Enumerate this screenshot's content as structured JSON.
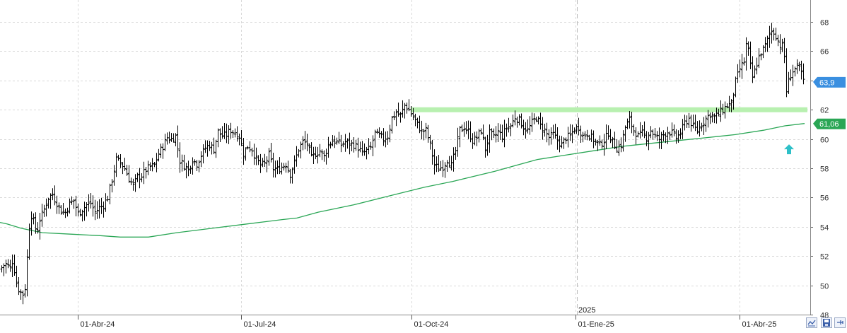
{
  "chart_data": {
    "type": "ohlc",
    "x_axis": {
      "tick_labels": [
        "01-Abr-24",
        "01-Jul-24",
        "01-Oct-24",
        "01-Ene-25",
        "01-Abr-25"
      ],
      "year_marker": "2025"
    },
    "y_axis": {
      "range": [
        48,
        69.5
      ],
      "tick_labels": [
        "48",
        "50",
        "52",
        "54",
        "56",
        "58",
        "60",
        "62",
        "64",
        "66",
        "68"
      ],
      "side": "right",
      "grid": true
    },
    "last_price": "63,9",
    "moving_average_last": "61,06",
    "support_level": 62,
    "price_path": [
      [
        0,
        51.1
      ],
      [
        7,
        51.5
      ],
      [
        14,
        51.2
      ],
      [
        18,
        51.8
      ],
      [
        22,
        50.3
      ],
      [
        27,
        49.6
      ],
      [
        32,
        49.4
      ],
      [
        36,
        50.0
      ],
      [
        40,
        53.8
      ],
      [
        44,
        54.8
      ],
      [
        48,
        54.2
      ],
      [
        52,
        53.6
      ],
      [
        56,
        54.5
      ],
      [
        62,
        55.2
      ],
      [
        68,
        56.0
      ],
      [
        74,
        56.2
      ],
      [
        80,
        55.6
      ],
      [
        86,
        55.1
      ],
      [
        92,
        55.0
      ],
      [
        98,
        55.6
      ],
      [
        104,
        55.8
      ],
      [
        110,
        54.9
      ],
      [
        116,
        55.2
      ],
      [
        122,
        55.5
      ],
      [
        128,
        55.6
      ],
      [
        134,
        55.0
      ],
      [
        140,
        55.3
      ],
      [
        146,
        55.5
      ],
      [
        152,
        56.0
      ],
      [
        158,
        57.2
      ],
      [
        164,
        58.6
      ],
      [
        170,
        58.4
      ],
      [
        176,
        58.0
      ],
      [
        182,
        57.3
      ],
      [
        188,
        56.8
      ],
      [
        194,
        57.4
      ],
      [
        200,
        57.5
      ],
      [
        206,
        57.9
      ],
      [
        212,
        58.1
      ],
      [
        218,
        58.2
      ],
      [
        224,
        59.0
      ],
      [
        230,
        59.5
      ],
      [
        236,
        60.1
      ],
      [
        242,
        60.0
      ],
      [
        248,
        60.2
      ],
      [
        254,
        58.5
      ],
      [
        260,
        58.2
      ],
      [
        266,
        57.9
      ],
      [
        272,
        58.6
      ],
      [
        278,
        58.3
      ],
      [
        284,
        58.9
      ],
      [
        290,
        59.4
      ],
      [
        296,
        59.6
      ],
      [
        302,
        59.3
      ],
      [
        308,
        60.5
      ],
      [
        314,
        60.2
      ],
      [
        320,
        60.3
      ],
      [
        326,
        60.6
      ],
      [
        332,
        60.4
      ],
      [
        338,
        60.2
      ],
      [
        344,
        59.0
      ],
      [
        350,
        59.5
      ],
      [
        356,
        59.3
      ],
      [
        362,
        58.6
      ],
      [
        368,
        58.2
      ],
      [
        374,
        58.3
      ],
      [
        380,
        58.9
      ],
      [
        386,
        58.0
      ],
      [
        392,
        57.9
      ],
      [
        398,
        58.1
      ],
      [
        404,
        58.3
      ],
      [
        410,
        57.6
      ],
      [
        416,
        58.4
      ],
      [
        422,
        59.3
      ],
      [
        428,
        59.8
      ],
      [
        434,
        59.7
      ],
      [
        440,
        58.7
      ],
      [
        446,
        59.0
      ],
      [
        452,
        59.2
      ],
      [
        458,
        58.8
      ],
      [
        464,
        59.6
      ],
      [
        470,
        59.9
      ],
      [
        476,
        59.8
      ],
      [
        482,
        59.6
      ],
      [
        488,
        59.8
      ],
      [
        494,
        59.7
      ],
      [
        500,
        59.6
      ],
      [
        506,
        59.4
      ],
      [
        512,
        59.0
      ],
      [
        518,
        59.2
      ],
      [
        524,
        59.4
      ],
      [
        530,
        60.4
      ],
      [
        536,
        60.2
      ],
      [
        542,
        60.0
      ],
      [
        548,
        60.2
      ],
      [
        554,
        61.4
      ],
      [
        560,
        61.8
      ],
      [
        566,
        61.6
      ],
      [
        572,
        62.3
      ],
      [
        578,
        62.0
      ],
      [
        584,
        61.5
      ],
      [
        590,
        61.0
      ],
      [
        596,
        60.5
      ],
      [
        602,
        60.6
      ],
      [
        608,
        59.6
      ],
      [
        614,
        58.2
      ],
      [
        620,
        58.0
      ],
      [
        626,
        58.1
      ],
      [
        632,
        58.6
      ],
      [
        638,
        58.2
      ],
      [
        644,
        59.2
      ],
      [
        650,
        60.6
      ],
      [
        656,
        60.8
      ],
      [
        662,
        60.5
      ],
      [
        668,
        59.9
      ],
      [
        674,
        60.1
      ],
      [
        680,
        60.6
      ],
      [
        686,
        59.3
      ],
      [
        692,
        60.4
      ],
      [
        698,
        60.1
      ],
      [
        704,
        60.5
      ],
      [
        710,
        60.2
      ],
      [
        716,
        60.8
      ],
      [
        722,
        60.9
      ],
      [
        728,
        61.5
      ],
      [
        734,
        61.3
      ],
      [
        740,
        60.8
      ],
      [
        746,
        60.6
      ],
      [
        752,
        61.1
      ],
      [
        758,
        61.5
      ],
      [
        764,
        60.9
      ],
      [
        770,
        60.6
      ],
      [
        776,
        60.1
      ],
      [
        782,
        60.3
      ],
      [
        788,
        59.9
      ],
      [
        794,
        59.6
      ],
      [
        800,
        60.1
      ],
      [
        806,
        60.2
      ],
      [
        812,
        60.7
      ],
      [
        818,
        60.8
      ],
      [
        824,
        60.2
      ],
      [
        830,
        60.4
      ],
      [
        836,
        60.1
      ],
      [
        842,
        59.8
      ],
      [
        848,
        59.6
      ],
      [
        854,
        59.9
      ],
      [
        860,
        60.4
      ],
      [
        866,
        59.8
      ],
      [
        872,
        59.4
      ],
      [
        878,
        59.6
      ],
      [
        884,
        60.8
      ],
      [
        890,
        61.3
      ],
      [
        896,
        60.6
      ],
      [
        902,
        60.2
      ],
      [
        908,
        60.4
      ],
      [
        914,
        60.1
      ],
      [
        920,
        60.6
      ],
      [
        926,
        60.2
      ],
      [
        932,
        60.0
      ],
      [
        938,
        60.3
      ],
      [
        944,
        60.5
      ],
      [
        950,
        60.4
      ],
      [
        956,
        60.1
      ],
      [
        962,
        60.4
      ],
      [
        968,
        61.1
      ],
      [
        974,
        61.4
      ],
      [
        980,
        60.8
      ],
      [
        986,
        60.6
      ],
      [
        992,
        61.0
      ],
      [
        998,
        61.4
      ],
      [
        1004,
        61.7
      ],
      [
        1010,
        61.5
      ],
      [
        1016,
        61.7
      ],
      [
        1022,
        62.0
      ],
      [
        1028,
        62.3
      ],
      [
        1034,
        62.4
      ],
      [
        1040,
        63.9
      ],
      [
        1046,
        64.8
      ],
      [
        1052,
        65.3
      ],
      [
        1056,
        66.8
      ],
      [
        1060,
        65.2
      ],
      [
        1064,
        64.2
      ],
      [
        1068,
        64.8
      ],
      [
        1072,
        65.5
      ],
      [
        1076,
        65.9
      ],
      [
        1080,
        66.2
      ],
      [
        1084,
        66.6
      ],
      [
        1088,
        67.2
      ],
      [
        1092,
        67.4
      ],
      [
        1096,
        67.2
      ],
      [
        1100,
        66.7
      ],
      [
        1104,
        66.3
      ],
      [
        1108,
        66.4
      ],
      [
        1112,
        63.3
      ],
      [
        1116,
        64.2
      ],
      [
        1120,
        64.6
      ],
      [
        1124,
        64.8
      ],
      [
        1128,
        64.9
      ],
      [
        1132,
        64.7
      ],
      [
        1136,
        63.9
      ]
    ],
    "moving_average_path": [
      [
        0,
        54.3
      ],
      [
        10,
        54.2
      ],
      [
        30,
        53.9
      ],
      [
        60,
        53.6
      ],
      [
        100,
        53.5
      ],
      [
        140,
        53.4
      ],
      [
        170,
        53.3
      ],
      [
        210,
        53.3
      ],
      [
        250,
        53.6
      ],
      [
        300,
        53.9
      ],
      [
        350,
        54.2
      ],
      [
        400,
        54.5
      ],
      [
        420,
        54.6
      ],
      [
        450,
        55.0
      ],
      [
        500,
        55.5
      ],
      [
        550,
        56.1
      ],
      [
        600,
        56.7
      ],
      [
        640,
        57.1
      ],
      [
        700,
        57.8
      ],
      [
        730,
        58.2
      ],
      [
        760,
        58.6
      ],
      [
        800,
        58.9
      ],
      [
        840,
        59.2
      ],
      [
        880,
        59.5
      ],
      [
        920,
        59.7
      ],
      [
        960,
        59.9
      ],
      [
        1000,
        60.1
      ],
      [
        1040,
        60.3
      ],
      [
        1080,
        60.6
      ],
      [
        1110,
        60.9
      ],
      [
        1138,
        61.06
      ]
    ]
  },
  "colors": {
    "background": "#ffffff",
    "bars": "#000000",
    "moving_average": "#2aa655",
    "support_band": "#b8f0b0",
    "grid": "#d9d9d9",
    "price_badge": "#3a8fe0",
    "arrow": "#2ec0c8"
  },
  "toolbar": {
    "icons": [
      "zoom-fit-icon",
      "save-icon",
      "pin-icon"
    ]
  }
}
